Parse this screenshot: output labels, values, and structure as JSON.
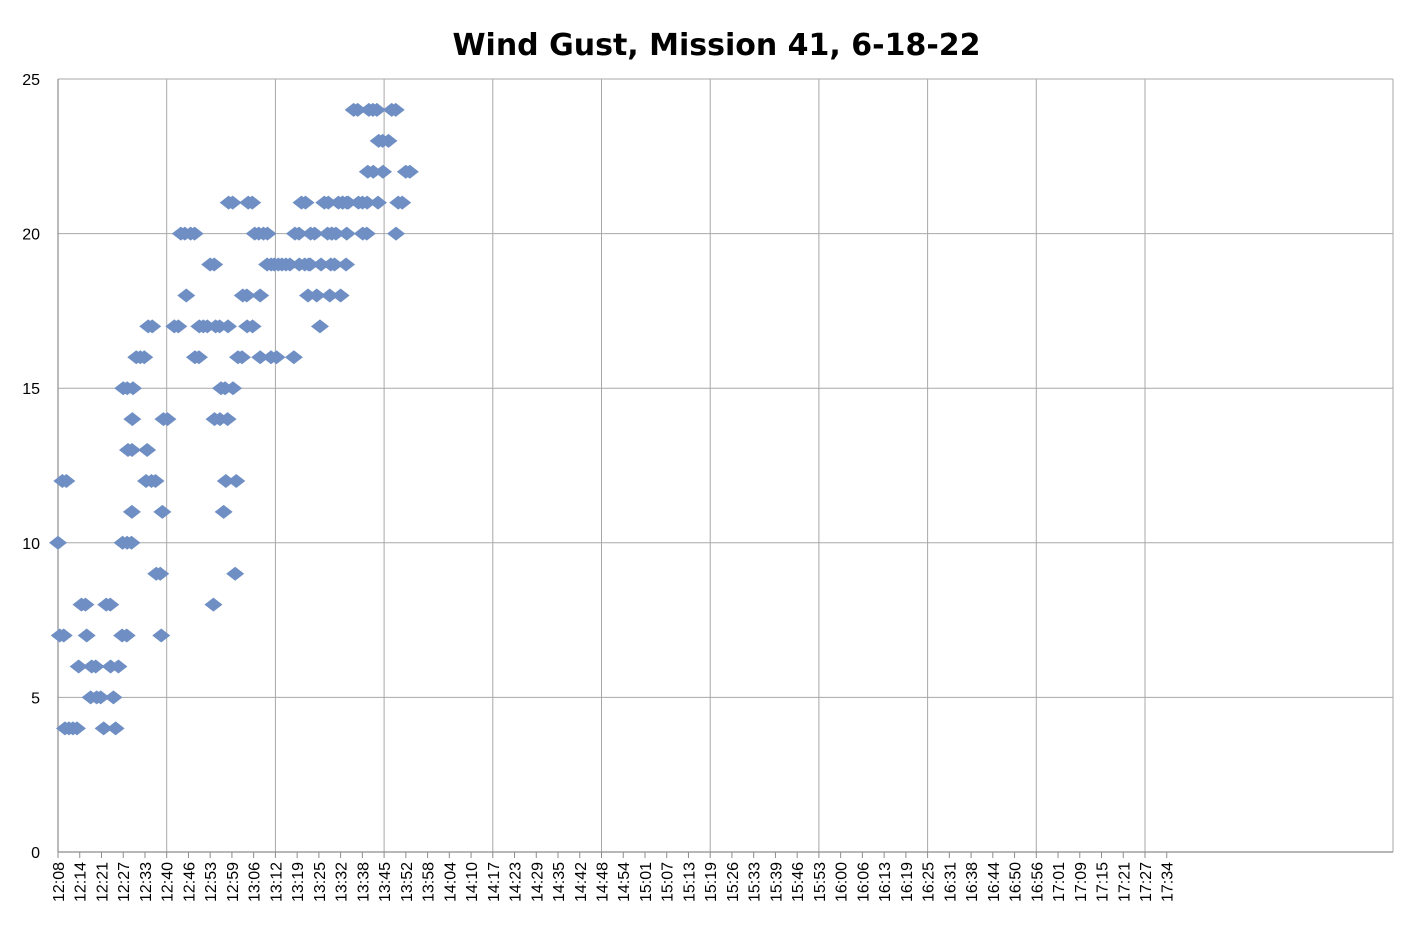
{
  "chart_data": {
    "type": "scatter",
    "title": "Wind Gust, Mission 41, 6-18-22",
    "xlabel": "",
    "ylabel": "",
    "ylim": [
      0,
      25
    ],
    "yticks": [
      "0",
      "5",
      "10",
      "15",
      "20",
      "25"
    ],
    "xticks": [
      "12:08",
      "12:14",
      "12:21",
      "12:27",
      "12:33",
      "12:40",
      "12:46",
      "12:53",
      "12:59",
      "13:06",
      "13:12",
      "13:19",
      "13:25",
      "13:32",
      "13:38",
      "13:45",
      "13:52",
      "13:58",
      "14:04",
      "14:10",
      "14:17",
      "14:23",
      "14:29",
      "14:35",
      "14:42",
      "14:48",
      "14:54",
      "15:01",
      "15:07",
      "15:13",
      "15:19",
      "15:26",
      "15:33",
      "15:39",
      "15:46",
      "15:53",
      "16:00",
      "16:06",
      "16:13",
      "16:19",
      "16:25",
      "16:31",
      "16:38",
      "16:44",
      "16:50",
      "16:56",
      "17:01",
      "17:09",
      "17:15",
      "17:21",
      "17:27",
      "17:34"
    ],
    "grid": true,
    "legend": "none",
    "marker": "diamond",
    "color": "#6f8fc4",
    "runs": [
      {
        "x0": 0.0,
        "x1": 0.15,
        "y": 10
      },
      {
        "x0": 0.08,
        "x1": 0.3,
        "y": 7
      },
      {
        "x0": 0.2,
        "x1": 0.55,
        "y": 12
      },
      {
        "x0": 0.32,
        "x1": 1.0,
        "y": 4
      },
      {
        "x0": 0.95,
        "x1": 1.05,
        "y": 6
      },
      {
        "x0": 1.08,
        "x1": 1.3,
        "y": 8
      },
      {
        "x0": 1.32,
        "x1": 1.5,
        "y": 7
      },
      {
        "x0": 1.5,
        "x1": 1.5,
        "y": 5
      },
      {
        "x0": 1.55,
        "x1": 1.8,
        "y": 6
      },
      {
        "x0": 1.78,
        "x1": 2.05,
        "y": 5
      },
      {
        "x0": 2.1,
        "x1": 2.1,
        "y": 4
      },
      {
        "x0": 2.22,
        "x1": 2.45,
        "y": 8
      },
      {
        "x0": 2.42,
        "x1": 2.6,
        "y": 6
      },
      {
        "x0": 2.55,
        "x1": 2.6,
        "y": 5
      },
      {
        "x0": 2.65,
        "x1": 2.75,
        "y": 4
      },
      {
        "x0": 2.78,
        "x1": 2.95,
        "y": 6
      },
      {
        "x0": 2.95,
        "x1": 2.95,
        "y": 7
      },
      {
        "x0": 2.97,
        "x1": 2.97,
        "y": 10
      },
      {
        "x0": 3.0,
        "x1": 3.22,
        "y": 15
      },
      {
        "x0": 3.16,
        "x1": 3.16,
        "y": 7
      },
      {
        "x0": 3.18,
        "x1": 3.18,
        "y": 10
      },
      {
        "x0": 3.22,
        "x1": 3.48,
        "y": 13
      },
      {
        "x0": 3.38,
        "x1": 3.38,
        "y": 10
      },
      {
        "x0": 3.4,
        "x1": 3.4,
        "y": 11
      },
      {
        "x0": 3.42,
        "x1": 3.42,
        "y": 14
      },
      {
        "x0": 3.45,
        "x1": 3.6,
        "y": 15
      },
      {
        "x0": 3.6,
        "x1": 4.15,
        "y": 16
      },
      {
        "x0": 4.05,
        "x1": 4.05,
        "y": 12
      },
      {
        "x0": 4.1,
        "x1": 4.1,
        "y": 13
      },
      {
        "x0": 4.15,
        "x1": 4.35,
        "y": 17
      },
      {
        "x0": 4.3,
        "x1": 4.5,
        "y": 12
      },
      {
        "x0": 4.52,
        "x1": 4.8,
        "y": 9
      },
      {
        "x0": 4.75,
        "x1": 4.75,
        "y": 7
      },
      {
        "x0": 4.8,
        "x1": 4.8,
        "y": 11
      },
      {
        "x0": 4.85,
        "x1": 5.2,
        "y": 14
      },
      {
        "x0": 5.35,
        "x1": 5.6,
        "y": 17
      },
      {
        "x0": 5.65,
        "x1": 5.9,
        "y": 20
      },
      {
        "x0": 5.9,
        "x1": 6.08,
        "y": 18
      },
      {
        "x0": 6.1,
        "x1": 6.3,
        "y": 20
      },
      {
        "x0": 6.3,
        "x1": 6.5,
        "y": 16
      },
      {
        "x0": 6.5,
        "x1": 7.0,
        "y": 17
      },
      {
        "x0": 7.0,
        "x1": 7.3,
        "y": 19
      },
      {
        "x0": 7.15,
        "x1": 7.15,
        "y": 8
      },
      {
        "x0": 7.2,
        "x1": 7.2,
        "y": 14
      },
      {
        "x0": 7.25,
        "x1": 7.5,
        "y": 17
      },
      {
        "x0": 7.45,
        "x1": 7.45,
        "y": 14
      },
      {
        "x0": 7.5,
        "x1": 7.7,
        "y": 15
      },
      {
        "x0": 7.62,
        "x1": 7.72,
        "y": 11
      },
      {
        "x0": 7.72,
        "x1": 7.82,
        "y": 12
      },
      {
        "x0": 7.8,
        "x1": 7.8,
        "y": 14
      },
      {
        "x0": 7.82,
        "x1": 7.82,
        "y": 17
      },
      {
        "x0": 7.85,
        "x1": 8.05,
        "y": 21
      },
      {
        "x0": 8.05,
        "x1": 8.2,
        "y": 15
      },
      {
        "x0": 8.15,
        "x1": 8.15,
        "y": 9
      },
      {
        "x0": 8.2,
        "x1": 8.22,
        "y": 12
      },
      {
        "x0": 8.28,
        "x1": 8.5,
        "y": 16
      },
      {
        "x0": 8.5,
        "x1": 8.7,
        "y": 18
      },
      {
        "x0": 8.7,
        "x1": 8.7,
        "y": 17
      },
      {
        "x0": 8.75,
        "x1": 9.0,
        "y": 21
      },
      {
        "x0": 8.95,
        "x1": 8.95,
        "y": 17
      },
      {
        "x0": 9.05,
        "x1": 9.3,
        "y": 20
      },
      {
        "x0": 9.3,
        "x1": 9.3,
        "y": 16
      },
      {
        "x0": 9.3,
        "x1": 9.4,
        "y": 18
      },
      {
        "x0": 9.45,
        "x1": 9.65,
        "y": 20
      },
      {
        "x0": 9.62,
        "x1": 9.9,
        "y": 19
      },
      {
        "x0": 9.8,
        "x1": 9.8,
        "y": 16
      },
      {
        "x0": 9.95,
        "x1": 10.2,
        "y": 19
      },
      {
        "x0": 10.05,
        "x1": 10.15,
        "y": 16
      },
      {
        "x0": 10.3,
        "x1": 10.85,
        "y": 19
      },
      {
        "x0": 10.85,
        "x1": 10.85,
        "y": 16
      },
      {
        "x0": 10.9,
        "x1": 11.15,
        "y": 20
      },
      {
        "x0": 11.1,
        "x1": 11.1,
        "y": 19
      },
      {
        "x0": 11.2,
        "x1": 11.4,
        "y": 21
      },
      {
        "x0": 11.35,
        "x1": 11.6,
        "y": 19
      },
      {
        "x0": 11.5,
        "x1": 11.55,
        "y": 18
      },
      {
        "x0": 11.6,
        "x1": 11.6,
        "y": 19
      },
      {
        "x0": 11.62,
        "x1": 11.82,
        "y": 20
      },
      {
        "x0": 11.9,
        "x1": 12.05,
        "y": 18
      },
      {
        "x0": 12.05,
        "x1": 12.05,
        "y": 17
      },
      {
        "x0": 12.1,
        "x1": 12.25,
        "y": 19
      },
      {
        "x0": 12.25,
        "x1": 12.45,
        "y": 21
      },
      {
        "x0": 12.4,
        "x1": 12.6,
        "y": 20
      },
      {
        "x0": 12.5,
        "x1": 12.5,
        "y": 18
      },
      {
        "x0": 12.55,
        "x1": 12.55,
        "y": 19
      },
      {
        "x0": 12.6,
        "x1": 12.8,
        "y": 20
      },
      {
        "x0": 12.72,
        "x1": 12.82,
        "y": 19
      },
      {
        "x0": 12.9,
        "x1": 13.1,
        "y": 21
      },
      {
        "x0": 13.0,
        "x1": 13.05,
        "y": 18
      },
      {
        "x0": 13.1,
        "x1": 13.3,
        "y": 21
      },
      {
        "x0": 13.25,
        "x1": 13.25,
        "y": 19
      },
      {
        "x0": 13.28,
        "x1": 13.28,
        "y": 20
      },
      {
        "x0": 13.35,
        "x1": 13.5,
        "y": 21
      },
      {
        "x0": 13.6,
        "x1": 13.82,
        "y": 24
      },
      {
        "x0": 13.82,
        "x1": 14.02,
        "y": 21
      },
      {
        "x0": 14.02,
        "x1": 14.3,
        "y": 20
      },
      {
        "x0": 14.22,
        "x1": 14.22,
        "y": 21
      },
      {
        "x0": 14.25,
        "x1": 14.25,
        "y": 22
      },
      {
        "x0": 14.3,
        "x1": 14.8,
        "y": 24
      },
      {
        "x0": 14.5,
        "x1": 14.5,
        "y": 22
      },
      {
        "x0": 14.72,
        "x1": 14.72,
        "y": 21
      },
      {
        "x0": 14.75,
        "x1": 14.95,
        "y": 23
      },
      {
        "x0": 14.95,
        "x1": 15.1,
        "y": 22
      },
      {
        "x0": 15.2,
        "x1": 15.32,
        "y": 23
      },
      {
        "x0": 15.35,
        "x1": 15.55,
        "y": 24
      },
      {
        "x0": 15.55,
        "x1": 15.6,
        "y": 20
      },
      {
        "x0": 15.65,
        "x1": 15.95,
        "y": 21
      },
      {
        "x0": 16.0,
        "x1": 16.2,
        "y": 22
      }
    ]
  }
}
